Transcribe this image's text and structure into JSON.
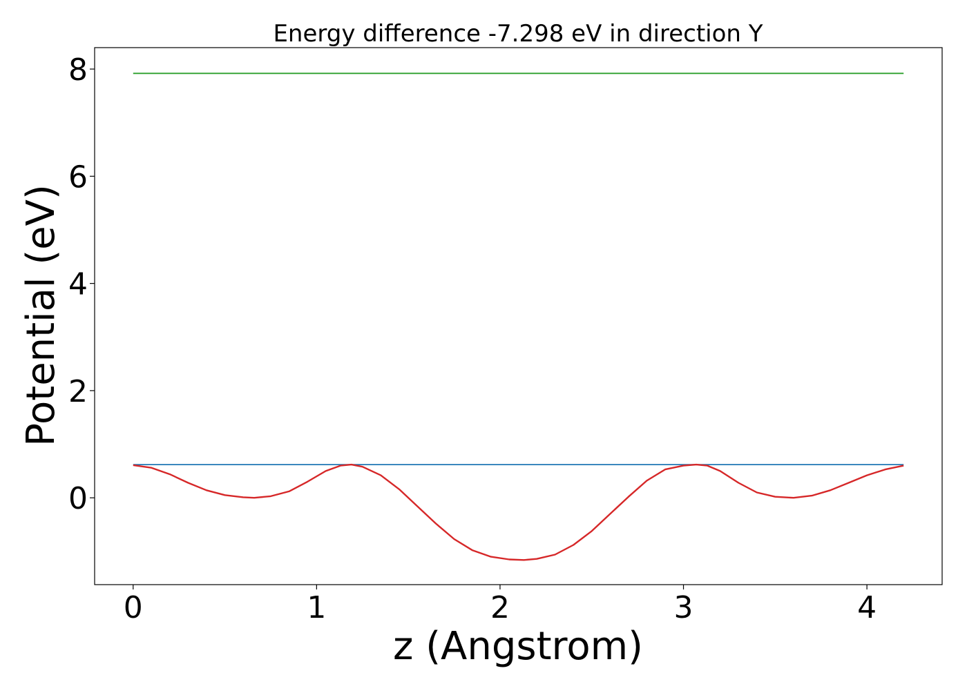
{
  "chart_data": {
    "type": "line",
    "title": "Energy difference -7.298 eV in direction Y",
    "xlabel": "z (Angstrom)",
    "ylabel": "Potential (eV)",
    "xlim": [
      -0.21,
      4.41
    ],
    "ylim": [
      -1.62,
      8.4
    ],
    "xticks": [
      0,
      1,
      2,
      3,
      4
    ],
    "yticks": [
      0,
      2,
      4,
      6,
      8
    ],
    "xtick_labels": [
      "0",
      "1",
      "2",
      "3",
      "4"
    ],
    "ytick_labels": [
      "0",
      "2",
      "4",
      "6",
      "8"
    ],
    "grid": false,
    "legend": "none",
    "series": [
      {
        "color": "#2ca02c",
        "x": [
          0,
          4.2
        ],
        "y": [
          7.92,
          7.92
        ]
      },
      {
        "color": "#1f77b4",
        "x": [
          0,
          4.2
        ],
        "y": [
          0.62,
          0.62
        ]
      },
      {
        "color": "#d62728",
        "x": [
          0,
          0.1,
          0.2,
          0.3,
          0.4,
          0.5,
          0.6,
          0.66,
          0.75,
          0.85,
          0.95,
          1.05,
          1.13,
          1.19,
          1.25,
          1.35,
          1.45,
          1.55,
          1.65,
          1.75,
          1.85,
          1.95,
          2.05,
          2.13,
          2.2,
          2.3,
          2.4,
          2.5,
          2.6,
          2.7,
          2.8,
          2.9,
          3.0,
          3.07,
          3.13,
          3.2,
          3.3,
          3.4,
          3.5,
          3.6,
          3.7,
          3.8,
          3.9,
          4.0,
          4.1,
          4.2
        ],
        "y": [
          0.61,
          0.56,
          0.44,
          0.28,
          0.14,
          0.05,
          0.01,
          0.0,
          0.03,
          0.12,
          0.3,
          0.5,
          0.6,
          0.62,
          0.58,
          0.42,
          0.16,
          -0.16,
          -0.48,
          -0.77,
          -0.98,
          -1.1,
          -1.15,
          -1.16,
          -1.14,
          -1.06,
          -0.88,
          -0.62,
          -0.3,
          0.02,
          0.32,
          0.53,
          0.6,
          0.62,
          0.6,
          0.5,
          0.28,
          0.1,
          0.02,
          0.0,
          0.04,
          0.14,
          0.28,
          0.42,
          0.53,
          0.6
        ]
      }
    ]
  }
}
